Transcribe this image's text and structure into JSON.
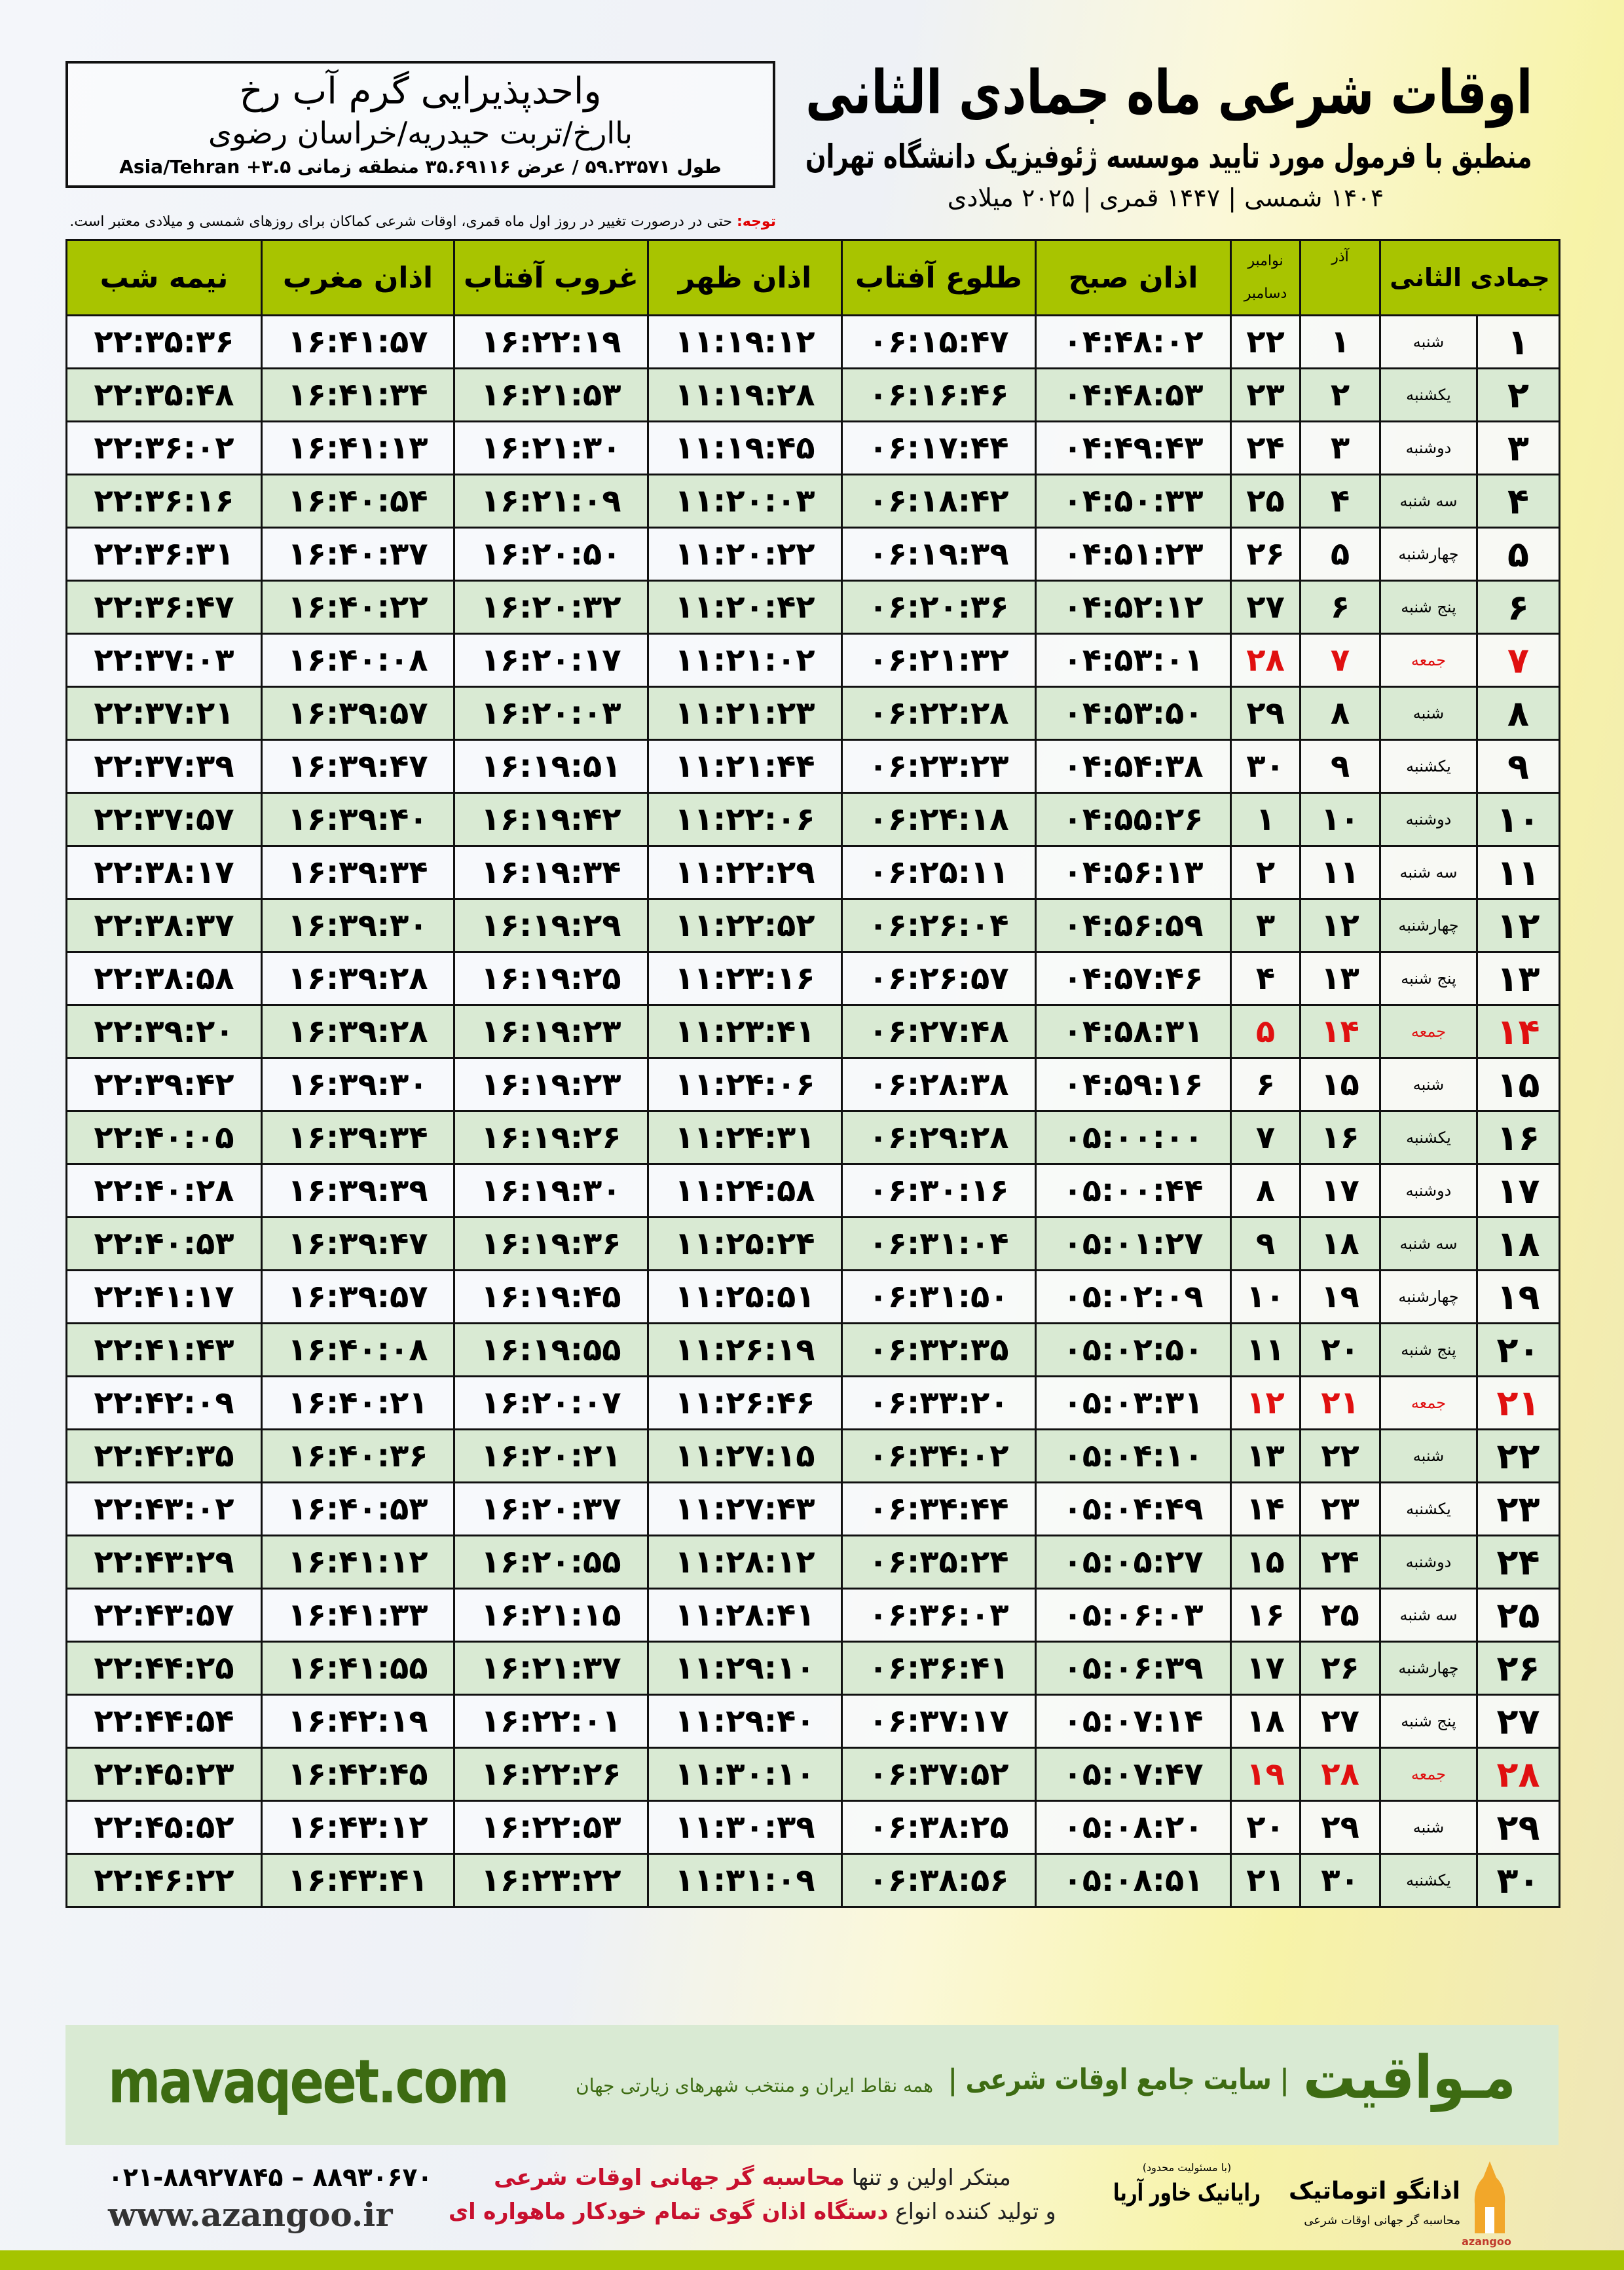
{
  "header": {
    "title": "اوقات شرعی ماه جمادی الثانی",
    "subtitle": "منطبق با فرمول مورد تایید موسسه ژئوفیزیک دانشگاه تهران",
    "years": "۱۴۰۴ شمسی | ۱۴۴۷ قمری | ۲۰۲۵ میلادی"
  },
  "location": {
    "name": "واحدپذیرایی گرم آب رخ",
    "address": "باارخ/تربت حیدریه/خراسان رضوی",
    "coords": "طول ۵۹.۲۳۵۷۱ / عرض ۳۵.۶۹۱۱۶ منطقه زمانی ۳.۵+ Asia/Tehran"
  },
  "note": {
    "label": "توجه:",
    "text": " حتی در درصورت تغییر در روز اول ماه قمری، اوقات شرعی کماکان برای روزهای شمسی و میلادی معتبر است."
  },
  "table": {
    "headers": {
      "day": "جمادی الثانی",
      "azar": "آذر",
      "nov": "نوامبر",
      "dec": "دسامبر",
      "sobh": "اذان صبح",
      "tolu": "طلوع آفتاب",
      "zohr": "اذان ظهر",
      "ghorub": "غروب آفتاب",
      "maghreb": "اذان مغرب",
      "nime": "نیمه شب"
    },
    "holiday_color": "#e01010",
    "header_color": "#a8c400",
    "rows": [
      [
        "۱",
        "شنبه",
        "۱",
        "۲۲",
        "۰۴:۴۸:۰۲",
        "۰۶:۱۵:۴۷",
        "۱۱:۱۹:۱۲",
        "۱۶:۲۲:۱۹",
        "۱۶:۴۱:۵۷",
        "۲۲:۳۵:۳۶"
      ],
      [
        "۲",
        "یکشنبه",
        "۲",
        "۲۳",
        "۰۴:۴۸:۵۳",
        "۰۶:۱۶:۴۶",
        "۱۱:۱۹:۲۸",
        "۱۶:۲۱:۵۳",
        "۱۶:۴۱:۳۴",
        "۲۲:۳۵:۴۸"
      ],
      [
        "۳",
        "دوشنبه",
        "۳",
        "۲۴",
        "۰۴:۴۹:۴۳",
        "۰۶:۱۷:۴۴",
        "۱۱:۱۹:۴۵",
        "۱۶:۲۱:۳۰",
        "۱۶:۴۱:۱۳",
        "۲۲:۳۶:۰۲"
      ],
      [
        "۴",
        "سه شنبه",
        "۴",
        "۲۵",
        "۰۴:۵۰:۳۳",
        "۰۶:۱۸:۴۲",
        "۱۱:۲۰:۰۳",
        "۱۶:۲۱:۰۹",
        "۱۶:۴۰:۵۴",
        "۲۲:۳۶:۱۶"
      ],
      [
        "۵",
        "چهارشنبه",
        "۵",
        "۲۶",
        "۰۴:۵۱:۲۳",
        "۰۶:۱۹:۳۹",
        "۱۱:۲۰:۲۲",
        "۱۶:۲۰:۵۰",
        "۱۶:۴۰:۳۷",
        "۲۲:۳۶:۳۱"
      ],
      [
        "۶",
        "پنج شنبه",
        "۶",
        "۲۷",
        "۰۴:۵۲:۱۲",
        "۰۶:۲۰:۳۶",
        "۱۱:۲۰:۴۲",
        "۱۶:۲۰:۳۲",
        "۱۶:۴۰:۲۲",
        "۲۲:۳۶:۴۷"
      ],
      [
        "۷",
        "جمعه",
        "۷",
        "۲۸",
        "۰۴:۵۳:۰۱",
        "۰۶:۲۱:۳۲",
        "۱۱:۲۱:۰۲",
        "۱۶:۲۰:۱۷",
        "۱۶:۴۰:۰۸",
        "۲۲:۳۷:۰۳"
      ],
      [
        "۸",
        "شنبه",
        "۸",
        "۲۹",
        "۰۴:۵۳:۵۰",
        "۰۶:۲۲:۲۸",
        "۱۱:۲۱:۲۳",
        "۱۶:۲۰:۰۳",
        "۱۶:۳۹:۵۷",
        "۲۲:۳۷:۲۱"
      ],
      [
        "۹",
        "یکشنبه",
        "۹",
        "۳۰",
        "۰۴:۵۴:۳۸",
        "۰۶:۲۳:۲۳",
        "۱۱:۲۱:۴۴",
        "۱۶:۱۹:۵۱",
        "۱۶:۳۹:۴۷",
        "۲۲:۳۷:۳۹"
      ],
      [
        "۱۰",
        "دوشنبه",
        "۱۰",
        "۱",
        "۰۴:۵۵:۲۶",
        "۰۶:۲۴:۱۸",
        "۱۱:۲۲:۰۶",
        "۱۶:۱۹:۴۲",
        "۱۶:۳۹:۴۰",
        "۲۲:۳۷:۵۷"
      ],
      [
        "۱۱",
        "سه شنبه",
        "۱۱",
        "۲",
        "۰۴:۵۶:۱۳",
        "۰۶:۲۵:۱۱",
        "۱۱:۲۲:۲۹",
        "۱۶:۱۹:۳۴",
        "۱۶:۳۹:۳۴",
        "۲۲:۳۸:۱۷"
      ],
      [
        "۱۲",
        "چهارشنبه",
        "۱۲",
        "۳",
        "۰۴:۵۶:۵۹",
        "۰۶:۲۶:۰۴",
        "۱۱:۲۲:۵۲",
        "۱۶:۱۹:۲۹",
        "۱۶:۳۹:۳۰",
        "۲۲:۳۸:۳۷"
      ],
      [
        "۱۳",
        "پنج شنبه",
        "۱۳",
        "۴",
        "۰۴:۵۷:۴۶",
        "۰۶:۲۶:۵۷",
        "۱۱:۲۳:۱۶",
        "۱۶:۱۹:۲۵",
        "۱۶:۳۹:۲۸",
        "۲۲:۳۸:۵۸"
      ],
      [
        "۱۴",
        "جمعه",
        "۱۴",
        "۵",
        "۰۴:۵۸:۳۱",
        "۰۶:۲۷:۴۸",
        "۱۱:۲۳:۴۱",
        "۱۶:۱۹:۲۳",
        "۱۶:۳۹:۲۸",
        "۲۲:۳۹:۲۰"
      ],
      [
        "۱۵",
        "شنبه",
        "۱۵",
        "۶",
        "۰۴:۵۹:۱۶",
        "۰۶:۲۸:۳۸",
        "۱۱:۲۴:۰۶",
        "۱۶:۱۹:۲۳",
        "۱۶:۳۹:۳۰",
        "۲۲:۳۹:۴۲"
      ],
      [
        "۱۶",
        "یکشنبه",
        "۱۶",
        "۷",
        "۰۵:۰۰:۰۰",
        "۰۶:۲۹:۲۸",
        "۱۱:۲۴:۳۱",
        "۱۶:۱۹:۲۶",
        "۱۶:۳۹:۳۴",
        "۲۲:۴۰:۰۵"
      ],
      [
        "۱۷",
        "دوشنبه",
        "۱۷",
        "۸",
        "۰۵:۰۰:۴۴",
        "۰۶:۳۰:۱۶",
        "۱۱:۲۴:۵۸",
        "۱۶:۱۹:۳۰",
        "۱۶:۳۹:۳۹",
        "۲۲:۴۰:۲۸"
      ],
      [
        "۱۸",
        "سه شنبه",
        "۱۸",
        "۹",
        "۰۵:۰۱:۲۷",
        "۰۶:۳۱:۰۴",
        "۱۱:۲۵:۲۴",
        "۱۶:۱۹:۳۶",
        "۱۶:۳۹:۴۷",
        "۲۲:۴۰:۵۳"
      ],
      [
        "۱۹",
        "چهارشنبه",
        "۱۹",
        "۱۰",
        "۰۵:۰۲:۰۹",
        "۰۶:۳۱:۵۰",
        "۱۱:۲۵:۵۱",
        "۱۶:۱۹:۴۵",
        "۱۶:۳۹:۵۷",
        "۲۲:۴۱:۱۷"
      ],
      [
        "۲۰",
        "پنج شنبه",
        "۲۰",
        "۱۱",
        "۰۵:۰۲:۵۰",
        "۰۶:۳۲:۳۵",
        "۱۱:۲۶:۱۹",
        "۱۶:۱۹:۵۵",
        "۱۶:۴۰:۰۸",
        "۲۲:۴۱:۴۳"
      ],
      [
        "۲۱",
        "جمعه",
        "۲۱",
        "۱۲",
        "۰۵:۰۳:۳۱",
        "۰۶:۳۳:۲۰",
        "۱۱:۲۶:۴۶",
        "۱۶:۲۰:۰۷",
        "۱۶:۴۰:۲۱",
        "۲۲:۴۲:۰۹"
      ],
      [
        "۲۲",
        "شنبه",
        "۲۲",
        "۱۳",
        "۰۵:۰۴:۱۰",
        "۰۶:۳۴:۰۲",
        "۱۱:۲۷:۱۵",
        "۱۶:۲۰:۲۱",
        "۱۶:۴۰:۳۶",
        "۲۲:۴۲:۳۵"
      ],
      [
        "۲۳",
        "یکشنبه",
        "۲۳",
        "۱۴",
        "۰۵:۰۴:۴۹",
        "۰۶:۳۴:۴۴",
        "۱۱:۲۷:۴۳",
        "۱۶:۲۰:۳۷",
        "۱۶:۴۰:۵۳",
        "۲۲:۴۳:۰۲"
      ],
      [
        "۲۴",
        "دوشنبه",
        "۲۴",
        "۱۵",
        "۰۵:۰۵:۲۷",
        "۰۶:۳۵:۲۴",
        "۱۱:۲۸:۱۲",
        "۱۶:۲۰:۵۵",
        "۱۶:۴۱:۱۲",
        "۲۲:۴۳:۲۹"
      ],
      [
        "۲۵",
        "سه شنبه",
        "۲۵",
        "۱۶",
        "۰۵:۰۶:۰۳",
        "۰۶:۳۶:۰۳",
        "۱۱:۲۸:۴۱",
        "۱۶:۲۱:۱۵",
        "۱۶:۴۱:۳۳",
        "۲۲:۴۳:۵۷"
      ],
      [
        "۲۶",
        "چهارشنبه",
        "۲۶",
        "۱۷",
        "۰۵:۰۶:۳۹",
        "۰۶:۳۶:۴۱",
        "۱۱:۲۹:۱۰",
        "۱۶:۲۱:۳۷",
        "۱۶:۴۱:۵۵",
        "۲۲:۴۴:۲۵"
      ],
      [
        "۲۷",
        "پنج شنبه",
        "۲۷",
        "۱۸",
        "۰۵:۰۷:۱۴",
        "۰۶:۳۷:۱۷",
        "۱۱:۲۹:۴۰",
        "۱۶:۲۲:۰۱",
        "۱۶:۴۲:۱۹",
        "۲۲:۴۴:۵۴"
      ],
      [
        "۲۸",
        "جمعه",
        "۲۸",
        "۱۹",
        "۰۵:۰۷:۴۷",
        "۰۶:۳۷:۵۲",
        "۱۱:۳۰:۱۰",
        "۱۶:۲۲:۲۶",
        "۱۶:۴۲:۴۵",
        "۲۲:۴۵:۲۳"
      ],
      [
        "۲۹",
        "شنبه",
        "۲۹",
        "۲۰",
        "۰۵:۰۸:۲۰",
        "۰۶:۳۸:۲۵",
        "۱۱:۳۰:۳۹",
        "۱۶:۲۲:۵۳",
        "۱۶:۴۳:۱۲",
        "۲۲:۴۵:۵۲"
      ],
      [
        "۳۰",
        "یکشنبه",
        "۳۰",
        "۲۱",
        "۰۵:۰۸:۵۱",
        "۰۶:۳۸:۵۶",
        "۱۱:۳۱:۰۹",
        "۱۶:۲۳:۲۲",
        "۱۶:۴۳:۴۱",
        "۲۲:۴۶:۲۲"
      ]
    ]
  },
  "footer": {
    "mavaqeet_logo": "مـواقیت",
    "mavaqeet_tagline": "| سایت جامع اوقات شرعی |",
    "mavaqeet_sub": "همه نقاط ایران و منتخب شهرهای زیارتی جهان",
    "mavaqeet_url": "mavaqeet.com",
    "brand_color": "#3d6b12",
    "phone": "۰۲۱-۸۸۹۲۷۸۴۵ – ۸۸۹۳۰۶۷۰",
    "website": "www.azangoo.ir",
    "promo_line1_a": "مبتکر اولین و تنها ",
    "promo_line1_b": "محاسبه گر جهانی اوقات شرعی",
    "promo_line2_a": "و تولید کننده انواع ",
    "promo_line2_b": "دستگاه اذان گوی تمام خودکار ماهواره ای",
    "rayanik_small": "(با مسئولیت محدود)",
    "rayanik": "رایانیک خاور آریا",
    "azangoo_name": "اذانگو اتوماتیک",
    "azangoo_sub": "محاسبه گر جهانی اوقات شرعی",
    "azangoo_latin": "azangoo"
  }
}
